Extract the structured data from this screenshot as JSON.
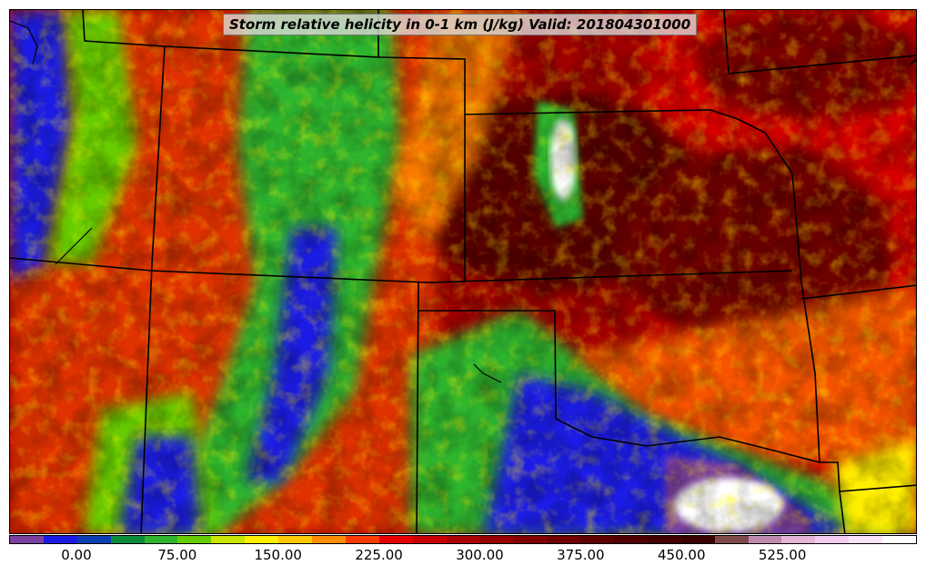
{
  "title": "Storm relative helicity in 0-1 km (J/kg) Valid: 201804301000",
  "map": {
    "variable": "Storm relative helicity in 0-1 km",
    "units": "J/kg",
    "valid_time": "201804301000",
    "layers": [
      "state-borders",
      "coastline"
    ]
  },
  "colorbar": {
    "colors": [
      "#7b3f9e",
      "#1a1ae6",
      "#0a3fb0",
      "#0a8a3a",
      "#2fb52f",
      "#66cc00",
      "#c8e600",
      "#ffee00",
      "#ffc800",
      "#ff8c00",
      "#ff3c00",
      "#e60000",
      "#c80000",
      "#aa0000",
      "#960000",
      "#820000",
      "#700000",
      "#600000",
      "#500000",
      "#440000",
      "#3a0000",
      "#7d4a4a",
      "#c08ab0",
      "#e6b4d8",
      "#f5cdf0",
      "#fbe3f8",
      "#ffffff"
    ],
    "tick_labels": [
      "0.00",
      "75.00",
      "150.00",
      "225.00",
      "300.00",
      "375.00",
      "450.00",
      "525.00"
    ]
  }
}
